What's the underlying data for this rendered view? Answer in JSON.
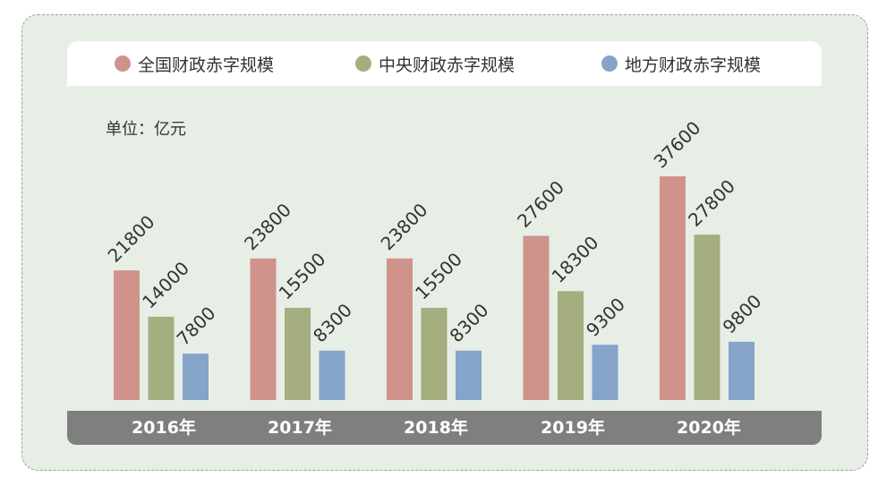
{
  "unit_label": "单位：亿元",
  "colors": {
    "national": "#cf938b",
    "central": "#a4ae7f",
    "local": "#86a3c8",
    "band": "#7f7f7f",
    "card": "#e7eee6"
  },
  "chart_data": {
    "type": "bar",
    "title": "",
    "xlabel": "",
    "ylabel": "",
    "legend_position": "top",
    "grid": false,
    "ylim": [
      0,
      40000
    ],
    "categories": [
      "2016年",
      "2017年",
      "2018年",
      "2019年",
      "2020年"
    ],
    "series": [
      {
        "name": "全国财政赤字规模",
        "color": "#cf938b",
        "values": [
          21800,
          23800,
          23800,
          27600,
          37600
        ]
      },
      {
        "name": "中央财政赤字规模",
        "color": "#a4ae7f",
        "values": [
          14000,
          15500,
          15500,
          18300,
          27800
        ]
      },
      {
        "name": "地方财政赤字规模",
        "color": "#86a3c8",
        "values": [
          7800,
          8300,
          8300,
          9300,
          9800
        ]
      }
    ]
  }
}
